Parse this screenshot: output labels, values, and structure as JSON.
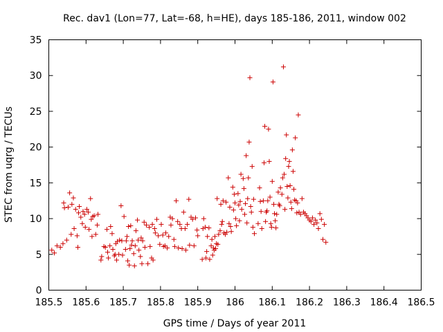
{
  "chart_data": {
    "type": "scatter",
    "title": "Rec. dav1 (Lon=77, Lat=-68, h=HE), days 185-186, 2011, window 002",
    "xlabel": "GPS time / Days of year 2011",
    "ylabel": "STEC from uqrg / TECUs",
    "xlim": [
      185.5,
      186.5
    ],
    "ylim": [
      0,
      35
    ],
    "x_ticks": [
      185.5,
      185.6,
      185.7,
      185.8,
      185.9,
      186.0,
      186.1,
      186.2,
      186.3,
      186.4,
      186.5
    ],
    "x_tick_labels": [
      "185.5",
      "185.6",
      "185.7",
      "185.8",
      "185.9",
      "186",
      "186.1",
      "186.2",
      "186.3",
      "186.4",
      "186.5"
    ],
    "y_ticks": [
      0,
      5,
      10,
      15,
      20,
      25,
      30,
      35
    ],
    "y_tick_labels": [
      "0",
      "5",
      "10",
      "15",
      "20",
      "25",
      "30",
      "35"
    ],
    "grid": false,
    "legend": "none",
    "marker": "plus",
    "color": "#cc0000",
    "series": [
      {
        "points": [
          [
            185.508,
            5.6
          ],
          [
            185.515,
            5.2
          ],
          [
            185.522,
            6.2
          ],
          [
            185.531,
            6.0
          ],
          [
            185.538,
            6.5
          ],
          [
            185.54,
            12.2
          ],
          [
            185.542,
            11.5
          ],
          [
            185.548,
            7.0
          ],
          [
            185.552,
            11.6
          ],
          [
            185.556,
            13.6
          ],
          [
            185.56,
            7.8
          ],
          [
            185.562,
            12.0
          ],
          [
            185.566,
            12.9
          ],
          [
            185.568,
            8.6
          ],
          [
            185.572,
            11.3
          ],
          [
            185.576,
            7.6
          ],
          [
            185.578,
            6.0
          ],
          [
            185.58,
            10.8
          ],
          [
            185.582,
            11.7
          ],
          [
            185.586,
            10.2
          ],
          [
            185.59,
            9.3
          ],
          [
            185.592,
            11.0
          ],
          [
            185.596,
            10.6
          ],
          [
            185.598,
            8.8
          ],
          [
            185.602,
            11.3
          ],
          [
            185.606,
            10.9
          ],
          [
            185.608,
            8.5
          ],
          [
            185.612,
            12.8
          ],
          [
            185.614,
            9.9
          ],
          [
            185.616,
            7.5
          ],
          [
            185.618,
            10.3
          ],
          [
            185.622,
            10.4
          ],
          [
            185.626,
            7.8
          ],
          [
            185.63,
            9.1
          ],
          [
            185.632,
            10.6
          ],
          [
            185.64,
            4.2
          ],
          [
            185.642,
            4.7
          ],
          [
            185.648,
            6.1
          ],
          [
            185.652,
            6.0
          ],
          [
            185.656,
            8.5
          ],
          [
            185.658,
            5.3
          ],
          [
            185.66,
            4.5
          ],
          [
            185.664,
            6.2
          ],
          [
            185.666,
            8.9
          ],
          [
            185.67,
            7.9
          ],
          [
            185.672,
            5.7
          ],
          [
            185.676,
            4.8
          ],
          [
            185.678,
            5.0
          ],
          [
            185.68,
            6.5
          ],
          [
            185.682,
            4.2
          ],
          [
            185.684,
            6.8
          ],
          [
            185.688,
            5.0
          ],
          [
            185.69,
            7.0
          ],
          [
            185.694,
            11.8
          ],
          [
            185.696,
            6.9
          ],
          [
            185.698,
            4.9
          ],
          [
            185.702,
            10.3
          ],
          [
            185.706,
            5.7
          ],
          [
            185.708,
            6.9
          ],
          [
            185.71,
            7.5
          ],
          [
            185.712,
            4.1
          ],
          [
            185.714,
            8.9
          ],
          [
            185.716,
            3.5
          ],
          [
            185.718,
            5.8
          ],
          [
            185.72,
            9.0
          ],
          [
            185.722,
            6.3
          ],
          [
            185.724,
            6.9
          ],
          [
            185.728,
            5.1
          ],
          [
            185.73,
            3.4
          ],
          [
            185.732,
            6.2
          ],
          [
            185.734,
            8.3
          ],
          [
            185.738,
            9.8
          ],
          [
            185.74,
            7.0
          ],
          [
            185.742,
            5.6
          ],
          [
            185.746,
            4.7
          ],
          [
            185.748,
            7.3
          ],
          [
            185.75,
            3.7
          ],
          [
            185.752,
            6.9
          ],
          [
            185.756,
            9.5
          ],
          [
            185.758,
            6.0
          ],
          [
            185.762,
            9.1
          ],
          [
            185.766,
            3.7
          ],
          [
            185.77,
            8.8
          ],
          [
            185.772,
            6.1
          ],
          [
            185.776,
            4.5
          ],
          [
            185.778,
            9.2
          ],
          [
            185.78,
            4.2
          ],
          [
            185.784,
            8.6
          ],
          [
            185.786,
            8.0
          ],
          [
            185.79,
            9.9
          ],
          [
            185.794,
            7.6
          ],
          [
            185.798,
            6.4
          ],
          [
            185.802,
            9.2
          ],
          [
            185.806,
            7.7
          ],
          [
            185.808,
            6.1
          ],
          [
            185.812,
            6.2
          ],
          [
            185.814,
            8.0
          ],
          [
            185.818,
            5.9
          ],
          [
            185.822,
            7.5
          ],
          [
            185.826,
            10.2
          ],
          [
            185.828,
            9.1
          ],
          [
            185.832,
            10.0
          ],
          [
            185.836,
            7.1
          ],
          [
            185.838,
            6.1
          ],
          [
            185.842,
            12.5
          ],
          [
            185.846,
            9.6
          ],
          [
            185.848,
            5.9
          ],
          [
            185.852,
            9.2
          ],
          [
            185.856,
            8.6
          ],
          [
            185.858,
            5.8
          ],
          [
            185.862,
            10.9
          ],
          [
            185.866,
            8.6
          ],
          [
            185.868,
            5.6
          ],
          [
            185.872,
            9.2
          ],
          [
            185.876,
            12.7
          ],
          [
            185.878,
            6.3
          ],
          [
            185.882,
            10.2
          ],
          [
            185.886,
            9.9
          ],
          [
            185.89,
            6.2
          ],
          [
            185.894,
            10.1
          ],
          [
            185.898,
            8.4
          ],
          [
            185.9,
            7.6
          ],
          [
            185.912,
            4.3
          ],
          [
            185.914,
            8.6
          ],
          [
            185.916,
            10.0
          ],
          [
            185.92,
            8.8
          ],
          [
            185.922,
            4.5
          ],
          [
            185.924,
            5.4
          ],
          [
            185.926,
            7.5
          ],
          [
            185.93,
            8.7
          ],
          [
            185.932,
            4.3
          ],
          [
            185.936,
            6.2
          ],
          [
            185.938,
            7.1
          ],
          [
            185.94,
            4.9
          ],
          [
            185.942,
            5.9
          ],
          [
            185.944,
            5.6
          ],
          [
            185.946,
            7.5
          ],
          [
            185.948,
            5.8
          ],
          [
            185.95,
            6.5
          ],
          [
            185.952,
            12.8
          ],
          [
            185.954,
            6.4
          ],
          [
            185.956,
            7.8
          ],
          [
            185.96,
            8.3
          ],
          [
            185.962,
            12.0
          ],
          [
            185.964,
            9.2
          ],
          [
            185.966,
            9.6
          ],
          [
            185.968,
            12.5
          ],
          [
            185.97,
            8.0
          ],
          [
            185.974,
            7.8
          ],
          [
            185.976,
            12.3
          ],
          [
            185.978,
            8.1
          ],
          [
            185.982,
            15.7
          ],
          [
            185.984,
            9.3
          ],
          [
            185.986,
            11.6
          ],
          [
            185.988,
            8.9
          ],
          [
            185.99,
            8.2
          ],
          [
            185.994,
            14.4
          ],
          [
            185.996,
            11.2
          ],
          [
            185.998,
            13.4
          ],
          [
            186.0,
            12.2
          ],
          [
            186.002,
            10.0
          ],
          [
            186.004,
            9.0
          ],
          [
            186.008,
            13.5
          ],
          [
            186.01,
            11.9
          ],
          [
            186.012,
            9.7
          ],
          [
            186.014,
            12.4
          ],
          [
            186.016,
            16.2
          ],
          [
            186.018,
            11.3
          ],
          [
            186.022,
            15.6
          ],
          [
            186.024,
            14.2
          ],
          [
            186.026,
            10.6
          ],
          [
            186.028,
            12.1
          ],
          [
            186.03,
            18.8
          ],
          [
            186.032,
            9.4
          ],
          [
            186.034,
            12.8
          ],
          [
            186.036,
            15.7
          ],
          [
            186.038,
            20.7
          ],
          [
            186.04,
            29.7
          ],
          [
            186.042,
            11.7
          ],
          [
            186.044,
            10.9
          ],
          [
            186.046,
            17.3
          ],
          [
            186.048,
            8.8
          ],
          [
            186.05,
            12.7
          ],
          [
            186.052,
            7.9
          ],
          [
            186.062,
            9.3
          ],
          [
            186.066,
            14.3
          ],
          [
            186.068,
            12.4
          ],
          [
            186.07,
            11.0
          ],
          [
            186.072,
            8.6
          ],
          [
            186.076,
            12.5
          ],
          [
            186.078,
            17.8
          ],
          [
            186.08,
            22.9
          ],
          [
            186.082,
            9.6
          ],
          [
            186.084,
            10.9
          ],
          [
            186.086,
            11.1
          ],
          [
            186.088,
            12.5
          ],
          [
            186.09,
            22.5
          ],
          [
            186.092,
            18.0
          ],
          [
            186.094,
            13.0
          ],
          [
            186.096,
            9.3
          ],
          [
            186.098,
            8.8
          ],
          [
            186.1,
            15.2
          ],
          [
            186.102,
            29.1
          ],
          [
            186.104,
            12.0
          ],
          [
            186.106,
            10.7
          ],
          [
            186.108,
            9.7
          ],
          [
            186.11,
            8.7
          ],
          [
            186.112,
            10.6
          ],
          [
            186.116,
            13.7
          ],
          [
            186.118,
            12.0
          ],
          [
            186.12,
            11.8
          ],
          [
            186.122,
            14.3
          ],
          [
            186.126,
            13.4
          ],
          [
            186.128,
            15.7
          ],
          [
            186.13,
            31.2
          ],
          [
            186.132,
            16.2
          ],
          [
            186.134,
            11.3
          ],
          [
            186.136,
            18.4
          ],
          [
            186.138,
            21.7
          ],
          [
            186.14,
            14.5
          ],
          [
            186.142,
            12.9
          ],
          [
            186.144,
            17.3
          ],
          [
            186.146,
            18.0
          ],
          [
            186.148,
            14.6
          ],
          [
            186.15,
            12.3
          ],
          [
            186.152,
            11.4
          ],
          [
            186.154,
            19.6
          ],
          [
            186.156,
            16.6
          ],
          [
            186.158,
            14.1
          ],
          [
            186.16,
            12.6
          ],
          [
            186.162,
            21.3
          ],
          [
            186.164,
            12.5
          ],
          [
            186.166,
            10.8
          ],
          [
            186.168,
            12.2
          ],
          [
            186.17,
            24.5
          ],
          [
            186.172,
            10.9
          ],
          [
            186.176,
            10.6
          ],
          [
            186.18,
            12.8
          ],
          [
            186.184,
            10.9
          ],
          [
            186.188,
            10.7
          ],
          [
            186.192,
            10.4
          ],
          [
            186.196,
            10.1
          ],
          [
            186.2,
            9.8
          ],
          [
            186.204,
            9.6
          ],
          [
            186.208,
            10.1
          ],
          [
            186.212,
            9.2
          ],
          [
            186.216,
            9.8
          ],
          [
            186.22,
            9.4
          ],
          [
            186.224,
            8.6
          ],
          [
            186.228,
            10.7
          ],
          [
            186.232,
            9.9
          ],
          [
            186.236,
            7.1
          ],
          [
            186.24,
            9.2
          ],
          [
            186.244,
            6.7
          ]
        ]
      }
    ]
  }
}
